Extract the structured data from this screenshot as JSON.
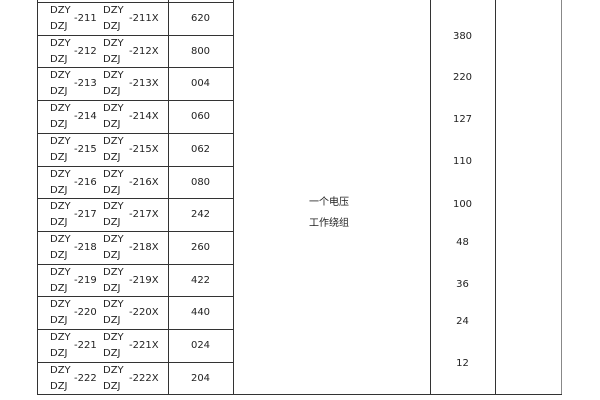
{
  "rows": [
    {
      "a1": "DZY",
      "a2": "DZJ",
      "n": "-211",
      "b1": "DZY",
      "b2": "DZJ",
      "x": "-211X",
      "code": "620"
    },
    {
      "a1": "DZY",
      "a2": "DZJ",
      "n": "-212",
      "b1": "DZY",
      "b2": "DZJ",
      "x": "-212X",
      "code": "800"
    },
    {
      "a1": "DZY",
      "a2": "DZJ",
      "n": "-213",
      "b1": "DZY",
      "b2": "DZJ",
      "x": "-213X",
      "code": "004"
    },
    {
      "a1": "DZY",
      "a2": "DZJ",
      "n": "-214",
      "b1": "DZY",
      "b2": "DZJ",
      "x": "-214X",
      "code": "060"
    },
    {
      "a1": "DZY",
      "a2": "DZJ",
      "n": "-215",
      "b1": "DZY",
      "b2": "DZJ",
      "x": "-215X",
      "code": "062"
    },
    {
      "a1": "DZY",
      "a2": "DZJ",
      "n": "-216",
      "b1": "DZY",
      "b2": "DZJ",
      "x": "-216X",
      "code": "080"
    },
    {
      "a1": "DZY",
      "a2": "DZJ",
      "n": "-217",
      "b1": "DZY",
      "b2": "DZJ",
      "x": "-217X",
      "code": "242"
    },
    {
      "a1": "DZY",
      "a2": "DZJ",
      "n": "-218",
      "b1": "DZY",
      "b2": "DZJ",
      "x": "-218X",
      "code": "260"
    },
    {
      "a1": "DZY",
      "a2": "DZJ",
      "n": "-219",
      "b1": "DZY",
      "b2": "DZJ",
      "x": "-219X",
      "code": "422"
    },
    {
      "a1": "DZY",
      "a2": "DZJ",
      "n": "-220",
      "b1": "DZY",
      "b2": "DZJ",
      "x": "-220X",
      "code": "440"
    },
    {
      "a1": "DZY",
      "a2": "DZJ",
      "n": "-221",
      "b1": "DZY",
      "b2": "DZJ",
      "x": "-221X",
      "code": "024"
    },
    {
      "a1": "DZY",
      "a2": "DZJ",
      "n": "-222",
      "b1": "DZY",
      "b2": "DZJ",
      "x": "-222X",
      "code": "204"
    }
  ],
  "winding": {
    "line1": "一个电压",
    "line2": "工作绕组"
  },
  "voltages": [
    "380",
    "220",
    "127",
    "110",
    "100",
    "48",
    "36",
    "24",
    "12"
  ]
}
